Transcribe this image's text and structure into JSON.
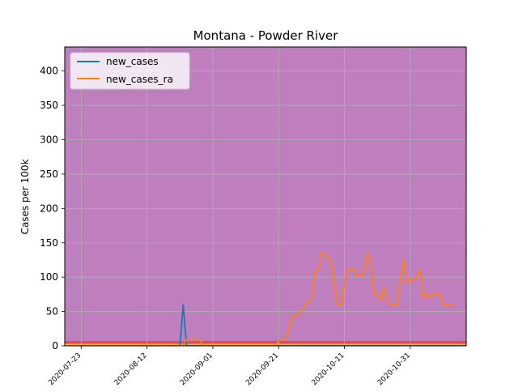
{
  "chart_data": {
    "type": "line",
    "title": "Montana - Powder River",
    "xlabel": "",
    "ylabel": "Cases per 100k",
    "x_start": "2020-07-19",
    "xlim": [
      "2020-07-18",
      "2020-11-17"
    ],
    "ylim": [
      0,
      435
    ],
    "x_ticks": [
      "2020-07-23",
      "2020-08-12",
      "2020-09-01",
      "2020-09-21",
      "2020-10-11",
      "2020-10-31"
    ],
    "y_ticks": [
      0,
      50,
      100,
      150,
      200,
      250,
      300,
      350,
      400
    ],
    "grid": true,
    "legend_position": "top-left",
    "background_color": "#bf7fbf",
    "bands": [
      {
        "from": 0,
        "to": 1,
        "color": "#ffff66"
      },
      {
        "from": 1,
        "to": 3,
        "color": "#ffb300"
      },
      {
        "from": 3,
        "to": 7,
        "color": "#e8474f"
      }
    ],
    "series": [
      {
        "name": "new_cases",
        "color": "#1f77b4",
        "values": [
          0,
          0,
          0,
          0,
          0,
          0,
          0,
          0,
          0,
          0,
          0,
          0,
          0,
          0,
          0,
          0,
          0,
          0,
          0,
          0,
          0,
          0,
          0,
          0,
          0,
          0,
          0,
          0,
          0,
          0,
          0,
          0,
          0,
          0,
          0,
          60,
          0,
          0,
          0,
          0,
          0,
          0,
          0,
          0,
          0,
          0,
          0,
          0,
          0,
          0,
          0,
          0,
          0,
          0,
          0,
          0,
          0,
          0,
          0,
          0,
          0,
          0,
          0,
          0,
          0,
          0,
          0,
          0,
          0,
          0,
          0,
          0,
          0,
          0,
          0,
          0,
          0,
          0,
          0,
          0,
          0,
          0,
          0,
          0,
          0,
          0,
          0,
          0,
          0,
          0,
          0,
          0,
          0,
          0,
          0,
          0,
          0,
          0,
          0,
          0,
          0,
          0,
          0,
          0,
          0,
          0,
          0,
          0,
          0,
          0,
          0,
          0,
          0,
          0,
          0,
          0,
          0,
          0,
          0,
          0,
          0,
          0
        ]
      },
      {
        "name": "new_cases_ra",
        "color": "#ff7f0e",
        "values": []
      }
    ]
  }
}
